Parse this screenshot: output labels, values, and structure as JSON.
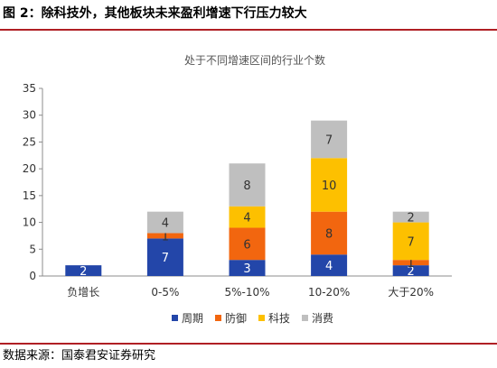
{
  "figure_title": "图 2：除科技外，其他板块未来盈利增速下行压力较大",
  "source_note": "数据来源：国泰君安证券研究",
  "colors": {
    "rule": "#b01f24",
    "周期": "#2346a9",
    "防御": "#f2660f",
    "科技": "#fdc000",
    "消费": "#bfbfbf"
  },
  "chart_data": {
    "type": "bar",
    "stacked": true,
    "title": "处于不同增速区间的行业个数",
    "categories": [
      "负增长",
      "0-5%",
      "5%-10%",
      "10-20%",
      "大于20%"
    ],
    "series": [
      {
        "name": "周期",
        "values": [
          2,
          7,
          3,
          4,
          2
        ]
      },
      {
        "name": "防御",
        "values": [
          0,
          1,
          6,
          8,
          1
        ]
      },
      {
        "name": "科技",
        "values": [
          0,
          0,
          4,
          10,
          7
        ]
      },
      {
        "name": "消费",
        "values": [
          0,
          4,
          8,
          7,
          2
        ]
      }
    ],
    "ylim": [
      0,
      35
    ],
    "yticks": [
      0,
      5,
      10,
      15,
      20,
      25,
      30,
      35
    ],
    "grid": false,
    "legend": "bottom",
    "xlabel": "",
    "ylabel": ""
  }
}
